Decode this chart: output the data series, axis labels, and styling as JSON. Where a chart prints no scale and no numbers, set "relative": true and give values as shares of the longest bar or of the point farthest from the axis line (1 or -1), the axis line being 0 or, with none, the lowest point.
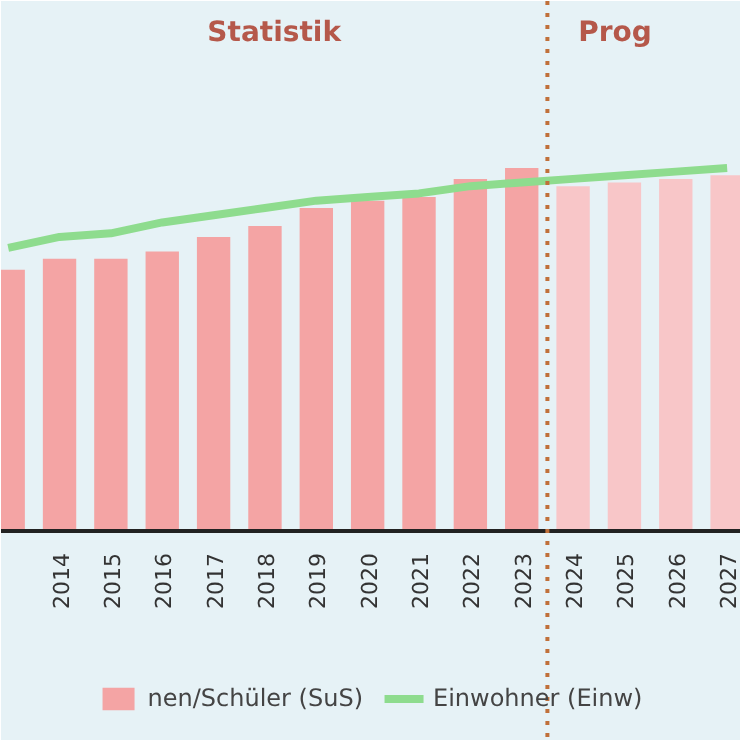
{
  "chart_data": {
    "type": "bar",
    "relative": true,
    "x": [
      2013,
      2014,
      2015,
      2016,
      2017,
      2018,
      2019,
      2020,
      2021,
      2022,
      2023,
      2024,
      2025,
      2026,
      2027
    ],
    "xlim": [
      2012.86,
      2027.27
    ],
    "xticks": [
      2014,
      2015,
      2016,
      2017,
      2018,
      2019,
      2020,
      2021,
      2022,
      2023,
      2024,
      2025,
      2026,
      2027
    ],
    "series": [
      {
        "name": "nen/Schüler (SuS)",
        "colors": [
          "#f4a4a4",
          "#f4a4a4",
          "#f4a4a4",
          "#f4a4a4",
          "#f4a4a4",
          "#f4a4a4",
          "#f4a4a4",
          "#f4a4a4",
          "#f4a4a4",
          "#f4a4a4",
          "#f4a4a4",
          "#f8c6c8",
          "#f8c6c8",
          "#f8c6c8",
          "#f8c6c8"
        ],
        "values": [
          0.72,
          0.75,
          0.75,
          0.77,
          0.81,
          0.84,
          0.89,
          0.91,
          0.92,
          0.97,
          1,
          0.95,
          0.96,
          0.97,
          0.98
        ]
      },
      {
        "name": "Einwohner (Einw)",
        "type": "line",
        "color": "#8edc8e",
        "values": [
          0.78,
          0.81,
          0.82,
          0.85,
          0.87,
          0.89,
          0.91,
          0.92,
          0.93,
          0.95,
          0.96,
          0.97,
          0.98,
          0.99,
          1.0
        ]
      }
    ],
    "ref_lines": [
      {
        "axis": "x",
        "value": 2023.5,
        "color": "#c0703a",
        "line_style": "dotted"
      }
    ],
    "annotations": [
      "Statistik",
      "Prog"
    ],
    "legend": "bottom",
    "line_style": "solid"
  }
}
